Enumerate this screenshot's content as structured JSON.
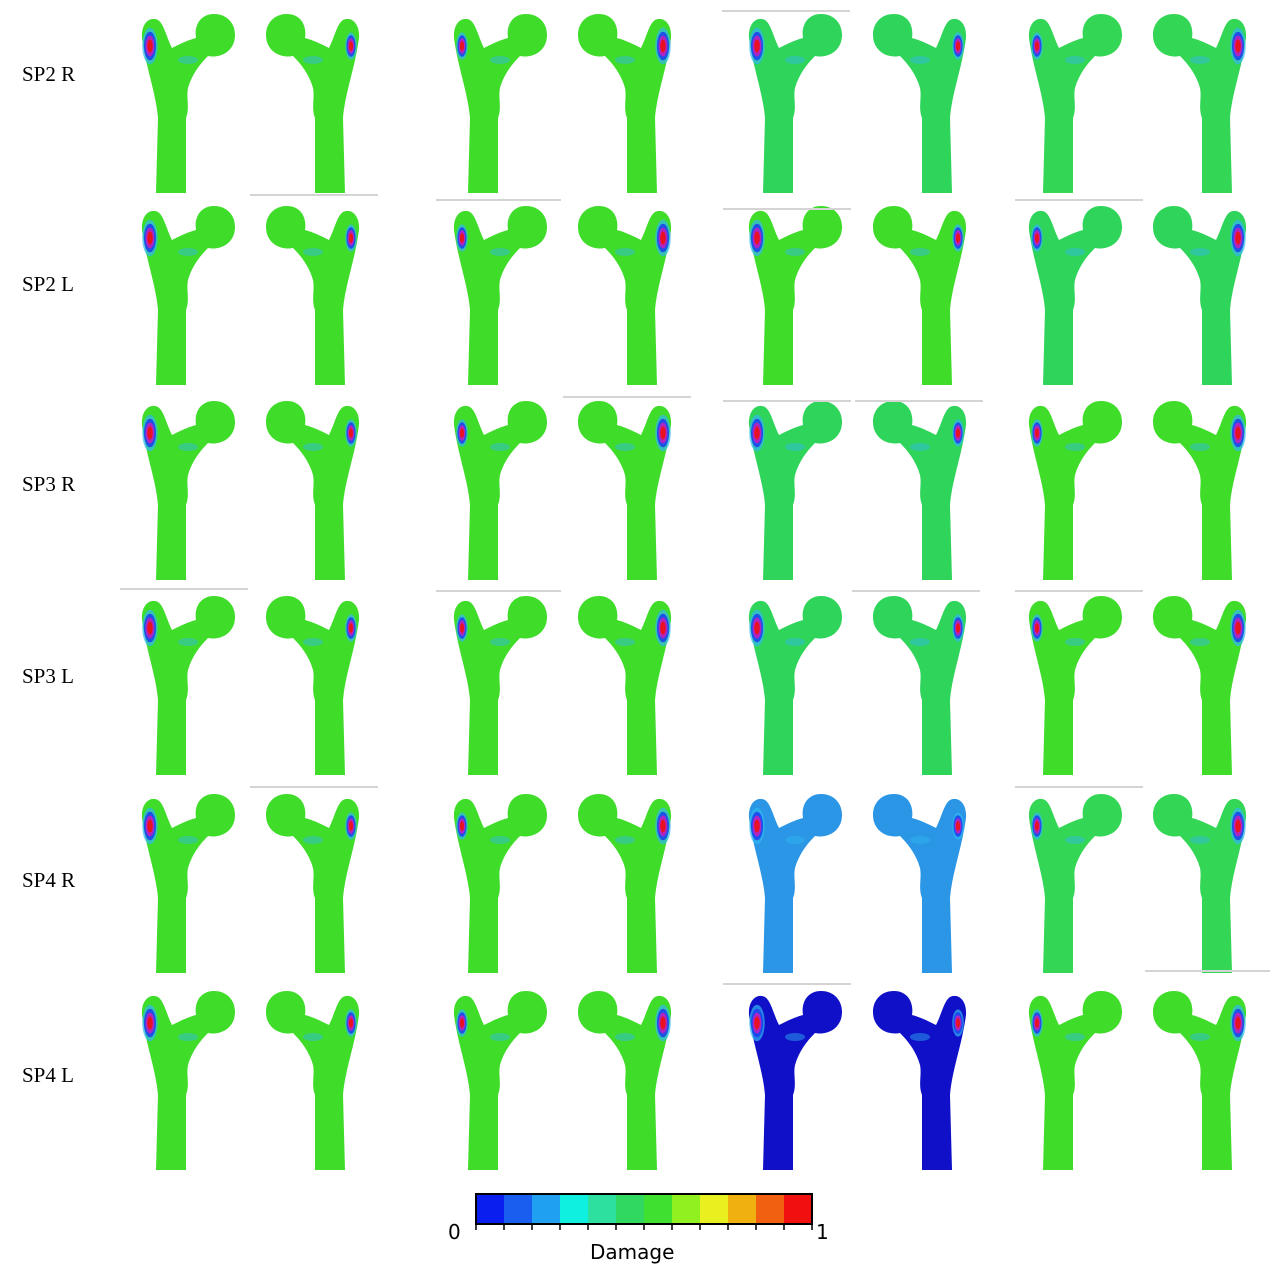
{
  "rows": [
    {
      "label": "SP2 R",
      "base_colors": [
        "#3fdc2a",
        "#3fdc2a",
        "#2fd45a",
        "#33d655"
      ]
    },
    {
      "label": "SP2 L",
      "base_colors": [
        "#3fdc2a",
        "#3fdc2a",
        "#3fdc2a",
        "#2fd45a"
      ]
    },
    {
      "label": "SP3 R",
      "base_colors": [
        "#3fdc2a",
        "#3fdc2a",
        "#2fd45a",
        "#3fdc2a"
      ]
    },
    {
      "label": "SP3 L",
      "base_colors": [
        "#3fdc2a",
        "#3fdc2a",
        "#2fd45a",
        "#3fdc2a"
      ]
    },
    {
      "label": "SP4 R",
      "base_colors": [
        "#3fdc2a",
        "#3fdc2a",
        "#2b95e6",
        "#33d655"
      ]
    },
    {
      "label": "SP4 L",
      "base_colors": [
        "#3fdc2a",
        "#3fdc2a",
        "#1010c8",
        "#3fdc2a"
      ]
    }
  ],
  "colorbar": {
    "min_label": "0",
    "max_label": "1",
    "title": "Damage",
    "colors": [
      "#0a1ef0",
      "#1a5ef0",
      "#1fa0f0",
      "#10f0e0",
      "#2ee0a0",
      "#30d860",
      "#40e030",
      "#90f020",
      "#e8f020",
      "#f0b010",
      "#f06010",
      "#f01010"
    ]
  },
  "damage_colors": [
    "#f01010",
    "#c020c0",
    "#1a3ef0",
    "#30b8f0"
  ]
}
